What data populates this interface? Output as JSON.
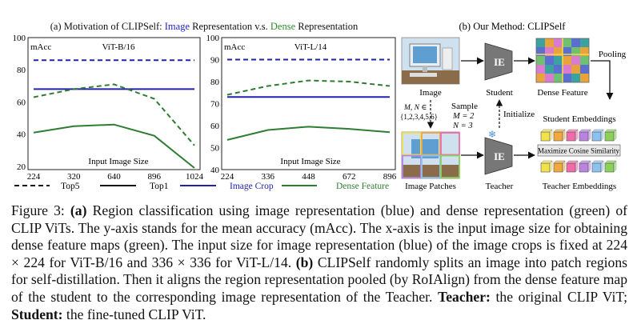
{
  "panel_a": {
    "title_parts": [
      "(a) Motivation of CLIPSelf: ",
      "Image",
      " Representation v.s. ",
      "Dense",
      " Representation"
    ]
  },
  "panel_b": {
    "title": "(b) Our Method: CLIPSelf",
    "labels": {
      "image": "Image",
      "student": "Student",
      "dense_feature": "Dense Feature",
      "pooling": "Pooling",
      "student_embeddings": "Student Embeddings",
      "ie_top": "IE",
      "ie_bottom": "IE",
      "sample": "Sample",
      "m_eq": "M = 2",
      "n_eq": "N = 3",
      "mn_set_1": "M, N ∈",
      "mn_set_2": "{1,2,3,4,5,6}",
      "initialize": "Initialize",
      "maximize": "Maximize Cosine Similarity",
      "image_patches": "Image Patches",
      "teacher": "Teacher",
      "teacher_embeddings": "Teacher Embeddings"
    },
    "colors": {
      "cells": [
        "#f2e24a",
        "#f0a93c",
        "#ef6ca9",
        "#b983e0",
        "#8cc2ef",
        "#8bd15a"
      ],
      "dense_map": [
        "#3aa3a0",
        "#d97bd0",
        "#5b6fd0",
        "#e9a33b",
        "#6fc06f"
      ]
    }
  },
  "legend": {
    "top5": "Top5",
    "top1": "Top1",
    "image_crop": "Image Crop",
    "dense_feature": "Dense Feature"
  },
  "chart_data": [
    {
      "type": "line",
      "title": "ViT-B/16",
      "ylabel": "mAcc",
      "xlabel": "Input Image Size",
      "categories": [
        "224",
        "320",
        "640",
        "896",
        "1024"
      ],
      "ylim": [
        18,
        100
      ],
      "yticks": [
        20,
        40,
        60,
        80,
        100
      ],
      "series": [
        {
          "name": "Image Crop",
          "metric": "Top5",
          "color": "#2222aa",
          "values": [
            86,
            86,
            86,
            86,
            86
          ]
        },
        {
          "name": "Image Crop",
          "metric": "Top1",
          "color": "#2222aa",
          "values": [
            68,
            68,
            68,
            68,
            68
          ]
        },
        {
          "name": "Dense Feature",
          "metric": "Top5",
          "color": "#2e7d32",
          "values": [
            63,
            68,
            71,
            62,
            33
          ]
        },
        {
          "name": "Dense Feature",
          "metric": "Top1",
          "color": "#2e7d32",
          "values": [
            41,
            45,
            46,
            39,
            19
          ]
        }
      ]
    },
    {
      "type": "line",
      "title": "ViT-L/14",
      "ylabel": "mAcc",
      "xlabel": "Input Image Size",
      "categories": [
        "224",
        "336",
        "448",
        "672",
        "896"
      ],
      "ylim": [
        40,
        100
      ],
      "yticks": [
        40,
        50,
        60,
        70,
        80,
        90,
        100
      ],
      "series": [
        {
          "name": "Image Crop",
          "metric": "Top5",
          "color": "#2222aa",
          "values": [
            90,
            90,
            90,
            90,
            90
          ]
        },
        {
          "name": "Image Crop",
          "metric": "Top1",
          "color": "#2222aa",
          "values": [
            73,
            73,
            73,
            73,
            73
          ]
        },
        {
          "name": "Dense Feature",
          "metric": "Top5",
          "color": "#2e7d32",
          "values": [
            74,
            78,
            80.5,
            80,
            78
          ]
        },
        {
          "name": "Dense Feature",
          "metric": "Top1",
          "color": "#2e7d32",
          "values": [
            53.5,
            58,
            59.5,
            58.5,
            57
          ]
        }
      ]
    }
  ],
  "caption": {
    "p1": "Figure 3: ",
    "p2": "(a)",
    "p3": " Region classification using image representation (blue) and dense representation (green) of CLIP ViTs. The y-axis stands for the mean accuracy (mAcc). The x-axis is the input image size for obtaining dense feature maps (green). The input size for image representation (blue) of the image crops is fixed at 224 × 224 for ViT-B/16 and 336 × 336 for ViT-L/14. ",
    "p4": "(b)",
    "p5": " CLIPSelf randomly splits an image into patch regions for self-distillation. Then it aligns the region representation pooled (by RoIAlign) from the dense feature map of the student to the corresponding image representation of the Teacher. ",
    "p6": "Teacher:",
    "p7": " the original CLIP ViT; ",
    "p8": "Student:",
    "p9": " the fine-tuned CLIP ViT."
  }
}
